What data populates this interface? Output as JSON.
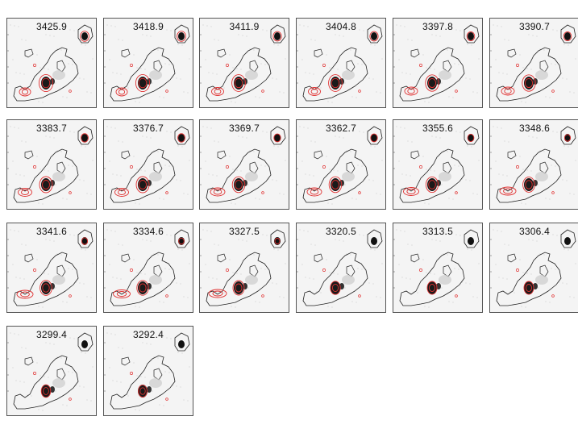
{
  "figure": {
    "description_label": "channel-map-grid",
    "panels": [
      {
        "label": "3425.9",
        "red_level": 0.9
      },
      {
        "label": "3418.9",
        "red_level": 0.9
      },
      {
        "label": "3411.9",
        "red_level": 0.85
      },
      {
        "label": "3404.8",
        "red_level": 0.85
      },
      {
        "label": "3397.8",
        "red_level": 0.8
      },
      {
        "label": "3390.7",
        "red_level": 0.8
      },
      {
        "label": "3383.7",
        "red_level": 0.75
      },
      {
        "label": "3376.7",
        "red_level": 0.75
      },
      {
        "label": "3369.7",
        "red_level": 0.7
      },
      {
        "label": "3362.7",
        "red_level": 0.7
      },
      {
        "label": "3355.6",
        "red_level": 0.65
      },
      {
        "label": "3348.6",
        "red_level": 0.6
      },
      {
        "label": "3341.6",
        "red_level": 0.6
      },
      {
        "label": "3334.6",
        "red_level": 0.55
      },
      {
        "label": "3327.5",
        "red_level": 0.5
      },
      {
        "label": "3320.5",
        "red_level": 0.3
      },
      {
        "label": "3313.5",
        "red_level": 0.25
      },
      {
        "label": "3306.4",
        "red_level": 0.25
      },
      {
        "label": "3299.4",
        "red_level": 0.2
      },
      {
        "label": "3292.4",
        "red_level": 0.1
      }
    ],
    "colors": {
      "contour_black": "#222222",
      "contour_red": "#e03030",
      "background": "#f4f4f4"
    }
  }
}
